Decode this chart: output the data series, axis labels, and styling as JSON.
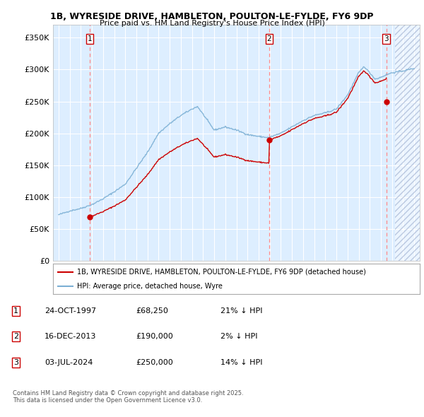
{
  "title_line1": "1B, WYRESIDE DRIVE, HAMBLETON, POULTON-LE-FYLDE, FY6 9DP",
  "title_line2": "Price paid vs. HM Land Registry's House Price Index (HPI)",
  "ylim": [
    0,
    370000
  ],
  "xlim_start": 1994.5,
  "xlim_end": 2027.5,
  "yticks": [
    0,
    50000,
    100000,
    150000,
    200000,
    250000,
    300000,
    350000
  ],
  "ytick_labels": [
    "£0",
    "£50K",
    "£100K",
    "£150K",
    "£200K",
    "£250K",
    "£300K",
    "£350K"
  ],
  "xticks": [
    1995,
    1996,
    1997,
    1998,
    1999,
    2000,
    2001,
    2002,
    2003,
    2004,
    2005,
    2006,
    2007,
    2008,
    2009,
    2010,
    2011,
    2012,
    2013,
    2014,
    2015,
    2016,
    2017,
    2018,
    2019,
    2020,
    2021,
    2022,
    2023,
    2024,
    2025,
    2026,
    2027
  ],
  "sale_dates": [
    1997.81,
    2013.96,
    2024.5
  ],
  "sale_prices": [
    68250,
    190000,
    250000
  ],
  "sale_labels": [
    "1",
    "2",
    "3"
  ],
  "legend_entries": [
    "1B, WYRESIDE DRIVE, HAMBLETON, POULTON-LE-FYLDE, FY6 9DP (detached house)",
    "HPI: Average price, detached house, Wyre"
  ],
  "table_rows": [
    [
      "1",
      "24-OCT-1997",
      "£68,250",
      "21% ↓ HPI"
    ],
    [
      "2",
      "16-DEC-2013",
      "£190,000",
      "2% ↓ HPI"
    ],
    [
      "3",
      "03-JUL-2024",
      "£250,000",
      "14% ↓ HPI"
    ]
  ],
  "footnote": "Contains HM Land Registry data © Crown copyright and database right 2025.\nThis data is licensed under the Open Government Licence v3.0.",
  "line_color_red": "#cc0000",
  "line_color_blue": "#7bafd4",
  "bg_color": "#ddeeff",
  "grid_color": "#ffffff",
  "vline_color": "#ff8888",
  "future_start": 2025.3
}
